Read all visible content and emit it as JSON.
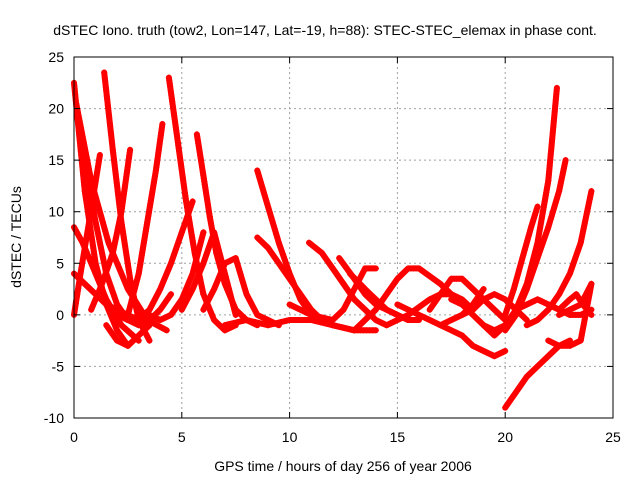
{
  "chart_data": {
    "type": "scatter",
    "title": "dSTEC Iono. truth (tow2, Lon=147, Lat=-19, h=88): STEC-STEC_elemax in phase cont.",
    "xlabel": "GPS time / hours of day 256 of year 2006",
    "ylabel": "dSTEC  / TECUs",
    "xlim": [
      0,
      25
    ],
    "ylim": [
      -10,
      25
    ],
    "xticks": [
      0,
      5,
      10,
      15,
      20,
      25
    ],
    "yticks": [
      -10,
      -5,
      0,
      5,
      10,
      15,
      20,
      25
    ],
    "grid": true,
    "marker": "plus",
    "color": "#ff0000",
    "series": [
      {
        "x": [
          0.0,
          0.5,
          1.0,
          1.5,
          2.0,
          2.5
        ],
        "y": [
          22.5,
          12.0,
          5.0,
          1.0,
          -1.5,
          -3.0
        ]
      },
      {
        "x": [
          0.0,
          0.4,
          0.9,
          1.5,
          2.2,
          3.0
        ],
        "y": [
          8.5,
          7.0,
          4.5,
          1.5,
          -1.0,
          -2.5
        ]
      },
      {
        "x": [
          0.0,
          0.3,
          0.7,
          1.2
        ],
        "y": [
          0.0,
          4.0,
          9.0,
          15.5
        ]
      },
      {
        "x": [
          0.0,
          0.5,
          1.0,
          1.5,
          2.0,
          2.5,
          3.0
        ],
        "y": [
          4.0,
          3.0,
          2.0,
          1.0,
          0.5,
          0.0,
          -0.5
        ]
      },
      {
        "x": [
          0.1,
          0.8,
          1.6,
          2.5,
          3.4,
          4.3
        ],
        "y": [
          20.5,
          13.0,
          7.0,
          2.5,
          -0.5,
          -1.5
        ]
      },
      {
        "x": [
          0.5,
          1.0,
          1.5,
          2.0,
          2.5
        ],
        "y": [
          15.0,
          9.0,
          4.0,
          1.0,
          -0.5
        ]
      },
      {
        "x": [
          1.4,
          1.8,
          2.2,
          2.6,
          3.0,
          3.5
        ],
        "y": [
          23.5,
          16.0,
          9.0,
          3.5,
          -0.5,
          -2.5
        ]
      },
      {
        "x": [
          1.5,
          2.0,
          2.5,
          3.0,
          3.5
        ],
        "y": [
          -1.0,
          -2.5,
          -3.0,
          -2.0,
          -1.0
        ]
      },
      {
        "x": [
          0.8,
          1.3,
          1.8,
          2.2,
          2.6
        ],
        "y": [
          0.5,
          3.0,
          6.0,
          10.0,
          16.0
        ]
      },
      {
        "x": [
          2.0,
          2.5,
          3.0,
          3.5,
          4.0,
          4.5
        ],
        "y": [
          0.0,
          -0.5,
          -1.0,
          -0.5,
          0.5,
          2.0
        ]
      },
      {
        "x": [
          2.5,
          3.0,
          3.4,
          3.8,
          4.1
        ],
        "y": [
          0.0,
          4.0,
          9.0,
          14.0,
          18.5
        ]
      },
      {
        "x": [
          3.0,
          3.5,
          4.0,
          4.5,
          5.0,
          5.5
        ],
        "y": [
          -0.5,
          0.5,
          2.5,
          5.0,
          8.0,
          11.0
        ]
      },
      {
        "x": [
          4.4,
          4.8,
          5.2,
          5.6,
          6.0,
          6.5,
          7.0,
          7.5
        ],
        "y": [
          23.0,
          17.0,
          11.0,
          6.0,
          2.0,
          -0.5,
          -1.5,
          -1.0
        ]
      },
      {
        "x": [
          3.5,
          4.0,
          4.5,
          5.0,
          5.5,
          6.0
        ],
        "y": [
          0.0,
          -0.5,
          0.0,
          1.5,
          4.0,
          8.0
        ]
      },
      {
        "x": [
          5.0,
          5.5,
          6.0,
          6.5,
          7.0,
          7.5
        ],
        "y": [
          0.5,
          2.5,
          5.0,
          8.0,
          4.0,
          0.0
        ]
      },
      {
        "x": [
          5.7,
          6.0,
          6.3,
          6.6,
          7.0,
          7.5,
          8.0,
          8.5
        ],
        "y": [
          17.5,
          13.5,
          9.5,
          6.0,
          3.0,
          0.5,
          -0.5,
          -1.0
        ]
      },
      {
        "x": [
          6.0,
          6.5,
          7.0,
          7.5,
          8.0,
          8.5,
          9.0,
          9.5
        ],
        "y": [
          0.5,
          2.5,
          5.0,
          5.5,
          2.0,
          0.0,
          -0.5,
          -1.0
        ]
      },
      {
        "x": [
          8.5,
          9.0,
          9.5,
          10.0,
          10.5,
          11.0,
          12.0,
          13.0
        ],
        "y": [
          14.0,
          10.5,
          7.0,
          4.0,
          1.5,
          0.0,
          -1.0,
          -1.5
        ]
      },
      {
        "x": [
          8.5,
          9.0,
          9.5,
          10.0,
          10.5,
          11.0,
          11.5,
          12.0
        ],
        "y": [
          7.5,
          6.5,
          5.0,
          3.5,
          2.0,
          0.5,
          -0.5,
          -1.0
        ]
      },
      {
        "x": [
          7.0,
          8.0,
          9.0,
          10.0,
          11.0,
          12.0,
          13.0,
          14.0
        ],
        "y": [
          -1.0,
          -0.5,
          -1.0,
          -0.5,
          -0.5,
          -1.0,
          -1.5,
          -1.5
        ]
      },
      {
        "x": [
          10.9,
          11.5,
          12.0,
          12.5,
          13.0,
          13.5,
          14.0,
          14.5
        ],
        "y": [
          7.0,
          6.0,
          4.5,
          3.0,
          1.5,
          0.5,
          -0.5,
          -1.0
        ]
      },
      {
        "x": [
          10.0,
          11.0,
          12.0,
          12.5,
          13.0,
          13.5,
          14.0
        ],
        "y": [
          1.0,
          0.0,
          -0.5,
          0.5,
          2.5,
          4.5,
          4.5
        ]
      },
      {
        "x": [
          12.3,
          13.0,
          13.5,
          14.0,
          14.5,
          15.0,
          15.5,
          16.0
        ],
        "y": [
          5.5,
          3.5,
          2.0,
          1.0,
          0.5,
          0.0,
          -0.5,
          -0.5
        ]
      },
      {
        "x": [
          12.8,
          13.5,
          14.0,
          14.5,
          15.0,
          15.5
        ],
        "y": [
          4.0,
          2.5,
          1.5,
          0.5,
          0.0,
          -0.5
        ]
      },
      {
        "x": [
          13.0,
          14.0,
          14.5,
          15.0,
          15.5,
          16.0,
          17.0,
          18.0
        ],
        "y": [
          -1.5,
          0.5,
          2.0,
          3.5,
          4.5,
          4.5,
          3.0,
          1.0
        ]
      },
      {
        "x": [
          14.5,
          15.5,
          16.5,
          17.0,
          17.5,
          18.0,
          18.5
        ],
        "y": [
          -1.0,
          0.0,
          1.5,
          2.0,
          2.0,
          1.5,
          0.5
        ]
      },
      {
        "x": [
          15.0,
          16.0,
          16.5,
          17.0,
          17.5,
          18.0,
          18.5,
          19.0
        ],
        "y": [
          1.0,
          0.0,
          -0.5,
          -1.0,
          -0.5,
          0.0,
          1.0,
          2.5
        ]
      },
      {
        "x": [
          16.5,
          17.0,
          17.5,
          18.0,
          18.5,
          19.0,
          19.5,
          20.0
        ],
        "y": [
          0.5,
          2.0,
          3.5,
          3.5,
          2.5,
          1.5,
          0.5,
          -0.5
        ]
      },
      {
        "x": [
          17.5,
          18.0,
          18.5,
          19.0,
          19.5,
          20.0
        ],
        "y": [
          1.5,
          1.0,
          0.0,
          -1.0,
          -2.0,
          -1.0
        ]
      },
      {
        "x": [
          18.0,
          18.5,
          19.0,
          19.5,
          20.0,
          20.5,
          21.0
        ],
        "y": [
          0.0,
          0.5,
          1.5,
          2.0,
          1.5,
          0.5,
          -0.5
        ]
      },
      {
        "x": [
          17.0,
          17.5,
          18.0,
          18.5,
          19.0,
          19.5,
          20.0
        ],
        "y": [
          -1.0,
          -1.5,
          -2.0,
          -3.0,
          -3.5,
          -4.0,
          -3.5
        ]
      },
      {
        "x": [
          19.0,
          19.5,
          20.0,
          20.5,
          21.0,
          21.5,
          22.0,
          22.4
        ],
        "y": [
          -1.0,
          -1.5,
          -1.0,
          0.5,
          3.0,
          7.0,
          13.0,
          22.0
        ]
      },
      {
        "x": [
          20.0,
          20.5,
          21.0,
          21.5,
          22.0,
          22.5,
          22.8
        ],
        "y": [
          -1.5,
          0.0,
          2.5,
          5.5,
          8.5,
          12.0,
          15.0
        ]
      },
      {
        "x": [
          20.0,
          20.4,
          20.8,
          21.2,
          21.5
        ],
        "y": [
          0.0,
          2.5,
          5.5,
          8.5,
          10.5
        ]
      },
      {
        "x": [
          20.0,
          20.5,
          21.0,
          21.5,
          22.0,
          22.5,
          23.0
        ],
        "y": [
          -9.0,
          -7.5,
          -6.0,
          -5.0,
          -4.0,
          -3.0,
          -2.5
        ]
      },
      {
        "x": [
          21.0,
          21.5,
          22.0,
          22.5,
          23.0,
          23.5,
          24.0
        ],
        "y": [
          -1.0,
          -0.5,
          0.5,
          2.0,
          4.0,
          7.0,
          12.0
        ]
      },
      {
        "x": [
          20.5,
          21.0,
          21.5,
          22.0,
          22.5,
          23.0,
          23.5,
          24.0
        ],
        "y": [
          0.5,
          1.0,
          1.5,
          1.0,
          0.5,
          0.0,
          0.0,
          0.5
        ]
      },
      {
        "x": [
          22.0,
          22.5,
          23.0,
          23.5,
          24.0
        ],
        "y": [
          -2.5,
          -3.0,
          -3.0,
          -2.5,
          3.0
        ]
      },
      {
        "x": [
          22.5,
          23.0,
          23.5,
          24.0
        ],
        "y": [
          0.0,
          0.5,
          1.0,
          3.0
        ]
      },
      {
        "x": [
          22.0,
          22.5,
          23.0,
          23.3,
          23.6,
          24.0
        ],
        "y": [
          1.0,
          0.5,
          1.5,
          2.0,
          1.0,
          0.0
        ]
      }
    ]
  }
}
